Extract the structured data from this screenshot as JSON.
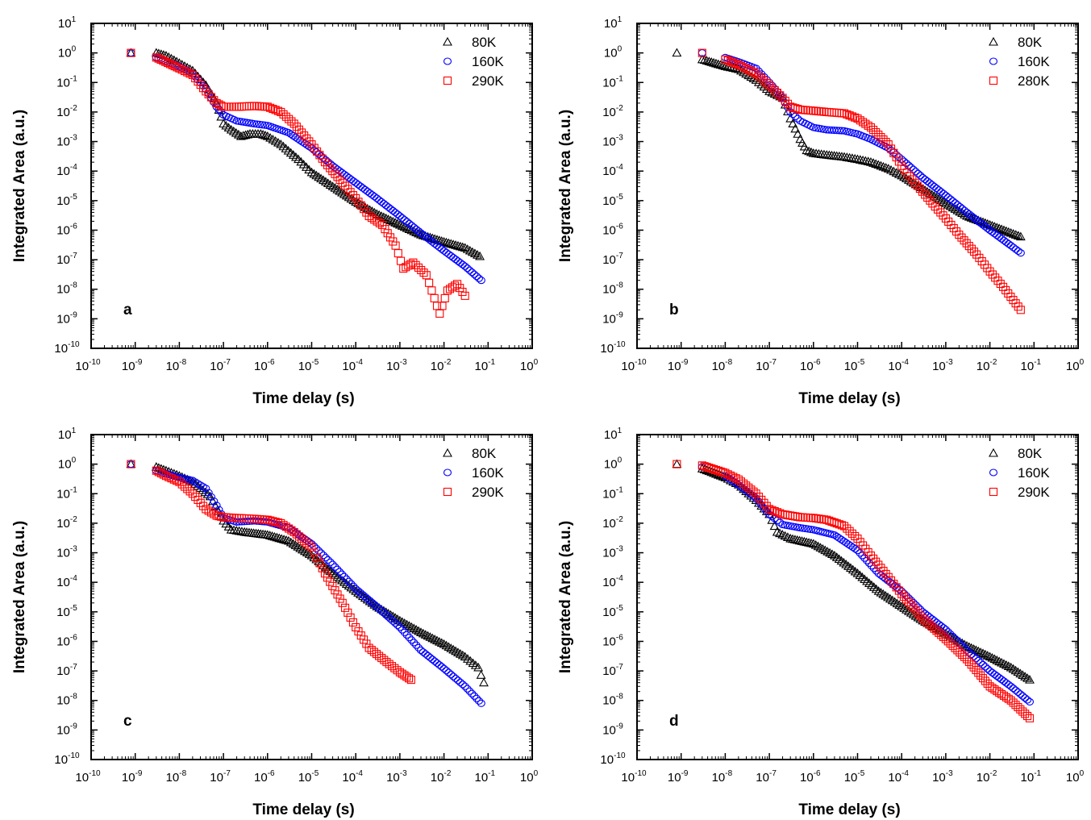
{
  "axis_text": {
    "x_title": "Time delay (s)",
    "y_title": "Integrated Area (a.u.)",
    "x_ticks": [
      {
        "base": "10",
        "exp": "-10"
      },
      {
        "base": "10",
        "exp": "-9"
      },
      {
        "base": "10",
        "exp": "-8"
      },
      {
        "base": "10",
        "exp": "-7"
      },
      {
        "base": "10",
        "exp": "-6"
      },
      {
        "base": "10",
        "exp": "-5"
      },
      {
        "base": "10",
        "exp": "-4"
      },
      {
        "base": "10",
        "exp": "-3"
      },
      {
        "base": "10",
        "exp": "-2"
      },
      {
        "base": "10",
        "exp": "-1"
      },
      {
        "base": "10",
        "exp": "0"
      }
    ],
    "y_ticks": [
      {
        "base": "10",
        "exp": "1"
      },
      {
        "base": "10",
        "exp": "0"
      },
      {
        "base": "10",
        "exp": "-1"
      },
      {
        "base": "10",
        "exp": "-2"
      },
      {
        "base": "10",
        "exp": "-3"
      },
      {
        "base": "10",
        "exp": "-4"
      },
      {
        "base": "10",
        "exp": "-5"
      },
      {
        "base": "10",
        "exp": "-6"
      },
      {
        "base": "10",
        "exp": "-7"
      },
      {
        "base": "10",
        "exp": "-8"
      },
      {
        "base": "10",
        "exp": "-9"
      },
      {
        "base": "10",
        "exp": "-10"
      }
    ]
  },
  "colors": {
    "80K": "#000000",
    "160K": "#0000ff",
    "290K": "#ff0000",
    "280K": "#ff0000"
  },
  "chart_data": [
    {
      "type": "scatter",
      "panel_label": "a",
      "xlabel": "Time delay (s)",
      "ylabel": "Integrated Area (a.u.)",
      "xscale": "log",
      "yscale": "log",
      "xlim": [
        1e-10,
        1
      ],
      "ylim": [
        1e-10,
        10
      ],
      "legend_position": "top-right",
      "series": [
        {
          "name": "80K",
          "marker": "triangle",
          "color": "#000000",
          "x": [
            8e-10,
            3e-09,
            5e-09,
            1e-08,
            2e-08,
            4e-08,
            7e-08,
            1e-07,
            1.5e-07,
            2.5e-07,
            4e-07,
            7e-07,
            1e-06,
            2e-06,
            5e-06,
            1e-05,
            3e-05,
            0.0001,
            0.0003,
            0.001,
            0.003,
            0.01,
            0.03,
            0.065
          ],
          "y": [
            1,
            1,
            0.8,
            0.45,
            0.25,
            0.08,
            0.02,
            0.004,
            0.0025,
            0.0015,
            0.0018,
            0.0018,
            0.0015,
            0.0008,
            0.00025,
            9e-05,
            3e-05,
            9e-06,
            3.5e-06,
            1.5e-06,
            7e-07,
            4e-07,
            2.5e-07,
            1.3e-07
          ]
        },
        {
          "name": "160K",
          "marker": "circle",
          "color": "#0000ff",
          "x": [
            8e-10,
            3e-09,
            1e-08,
            2e-08,
            4e-08,
            7e-08,
            1e-07,
            2e-07,
            5e-07,
            1e-06,
            3e-06,
            1e-05,
            3e-05,
            0.0001,
            0.0003,
            0.001,
            0.003,
            0.01,
            0.03,
            0.07
          ],
          "y": [
            1,
            0.7,
            0.35,
            0.2,
            0.06,
            0.015,
            0.008,
            0.005,
            0.004,
            0.0035,
            0.002,
            0.0006,
            0.00015,
            4e-05,
            1.2e-05,
            3e-06,
            8e-07,
            2e-07,
            6e-08,
            2e-08
          ]
        },
        {
          "name": "290K",
          "marker": "square",
          "color": "#ff0000",
          "x": [
            8e-10,
            3e-09,
            1e-08,
            2e-08,
            4e-08,
            7e-08,
            1e-07,
            2e-07,
            5e-07,
            1e-06,
            2e-06,
            4e-06,
            1e-05,
            2e-05,
            5e-05,
            0.0001,
            0.0002,
            0.0004,
            0.0008,
            0.0012,
            0.002,
            0.004,
            0.008,
            0.012,
            0.02,
            0.03
          ],
          "y": [
            1,
            0.7,
            0.3,
            0.18,
            0.05,
            0.02,
            0.015,
            0.015,
            0.016,
            0.015,
            0.01,
            0.004,
            0.0008,
            0.0002,
            4e-05,
            1.2e-05,
            3e-06,
            1.5e-06,
            3e-07,
            5e-08,
            8e-08,
            3e-08,
            1.5e-09,
            9e-09,
            1.5e-08,
            6e-09
          ]
        }
      ]
    },
    {
      "type": "scatter",
      "panel_label": "b",
      "xlabel": "Time delay (s)",
      "ylabel": "Integrated Area (a.u.)",
      "xscale": "log",
      "yscale": "log",
      "xlim": [
        1e-10,
        1
      ],
      "ylim": [
        1e-10,
        10
      ],
      "legend_position": "top-right",
      "series": [
        {
          "name": "80K",
          "marker": "triangle",
          "color": "#000000",
          "x": [
            8e-10,
            3e-09,
            1e-08,
            2e-08,
            5e-08,
            1e-07,
            2e-07,
            3e-07,
            5e-07,
            7e-07,
            1e-06,
            2e-06,
            5e-06,
            1e-05,
            2e-05,
            5e-05,
            0.0001,
            0.0003,
            0.001,
            0.003,
            0.01,
            0.03,
            0.05
          ],
          "y": [
            1,
            0.6,
            0.35,
            0.28,
            0.12,
            0.05,
            0.03,
            0.006,
            0.0012,
            0.0005,
            0.0004,
            0.00035,
            0.0003,
            0.00025,
            0.0002,
            0.00012,
            7e-05,
            2.5e-05,
            8e-06,
            3e-06,
            1.5e-06,
            8e-07,
            6e-07
          ]
        },
        {
          "name": "160K",
          "marker": "circle",
          "color": "#0000ff",
          "x": [
            3e-09,
            1e-08,
            2e-08,
            5e-08,
            1e-07,
            2e-07,
            3e-07,
            5e-07,
            1e-06,
            2e-06,
            5e-06,
            1e-05,
            2e-05,
            5e-05,
            0.0001,
            0.0003,
            0.001,
            0.003,
            0.01,
            0.03,
            0.05
          ],
          "y": [
            1,
            0.7,
            0.5,
            0.3,
            0.1,
            0.03,
            0.01,
            0.005,
            0.003,
            0.0025,
            0.0023,
            0.0018,
            0.0012,
            0.0006,
            0.00025,
            6e-05,
            1.5e-05,
            4e-06,
            1e-06,
            3e-07,
            1.7e-07
          ]
        },
        {
          "name": "280K",
          "marker": "square",
          "color": "#ff0000",
          "x": [
            3e-09,
            1e-08,
            2e-08,
            5e-08,
            1e-07,
            2e-07,
            3e-07,
            5e-07,
            1e-06,
            2e-06,
            5e-06,
            1e-05,
            2e-05,
            5e-05,
            0.0001,
            0.0002,
            0.0005,
            0.001,
            0.002,
            0.005,
            0.01,
            0.02,
            0.05
          ],
          "y": [
            1,
            0.6,
            0.4,
            0.2,
            0.08,
            0.03,
            0.015,
            0.012,
            0.011,
            0.01,
            0.009,
            0.006,
            0.003,
            0.0008,
            0.00015,
            4e-05,
            8e-06,
            2.5e-06,
            7e-07,
            1.5e-07,
            4e-08,
            1.2e-08,
            2e-09
          ]
        }
      ]
    },
    {
      "type": "scatter",
      "panel_label": "c",
      "xlabel": "Time delay (s)",
      "ylabel": "Integrated Area (a.u.)",
      "xscale": "log",
      "yscale": "log",
      "xlim": [
        1e-10,
        1
      ],
      "ylim": [
        1e-10,
        10
      ],
      "legend_position": "top-right",
      "series": [
        {
          "name": "80K",
          "marker": "triangle",
          "color": "#000000",
          "x": [
            8e-10,
            3e-09,
            5e-09,
            1e-08,
            2e-08,
            5e-08,
            1e-07,
            1.5e-07,
            3e-07,
            1e-06,
            3e-06,
            1e-05,
            3e-05,
            0.0001,
            0.0003,
            0.001,
            0.003,
            0.01,
            0.03,
            0.06,
            0.08
          ],
          "y": [
            1,
            0.8,
            0.6,
            0.4,
            0.25,
            0.08,
            0.012,
            0.006,
            0.005,
            0.004,
            0.0025,
            0.0008,
            0.0002,
            5e-05,
            1.5e-05,
            5e-06,
            2e-06,
            8e-07,
            3e-07,
            1.3e-07,
            4e-08
          ]
        },
        {
          "name": "160K",
          "marker": "circle",
          "color": "#0000ff",
          "x": [
            8e-10,
            3e-09,
            1e-08,
            2e-08,
            4e-08,
            7e-08,
            1e-07,
            2e-07,
            5e-07,
            1e-06,
            3e-06,
            1e-05,
            3e-05,
            0.0001,
            0.0003,
            0.001,
            0.003,
            0.01,
            0.03,
            0.07
          ],
          "y": [
            1,
            0.6,
            0.35,
            0.28,
            0.15,
            0.04,
            0.015,
            0.011,
            0.012,
            0.011,
            0.007,
            0.002,
            0.0004,
            6e-05,
            1.5e-05,
            3e-06,
            5e-07,
            1.2e-07,
            3e-08,
            8e-09
          ]
        },
        {
          "name": "290K",
          "marker": "square",
          "color": "#ff0000",
          "x": [
            8e-10,
            3e-09,
            5e-09,
            1e-08,
            2e-08,
            4e-08,
            7e-08,
            1e-07,
            2e-07,
            5e-07,
            1e-06,
            2e-06,
            4e-06,
            1e-05,
            2e-05,
            5e-05,
            0.0001,
            0.0002,
            0.0005,
            0.001,
            0.0018
          ],
          "y": [
            1,
            0.6,
            0.4,
            0.25,
            0.1,
            0.03,
            0.018,
            0.016,
            0.015,
            0.014,
            0.013,
            0.01,
            0.005,
            0.0015,
            0.0002,
            2e-05,
            3e-06,
            6e-07,
            2e-07,
            9e-08,
            5e-08
          ]
        }
      ]
    },
    {
      "type": "scatter",
      "panel_label": "d",
      "xlabel": "Time delay (s)",
      "ylabel": "Integrated Area (a.u.)",
      "xscale": "log",
      "yscale": "log",
      "xlim": [
        1e-10,
        1
      ],
      "ylim": [
        1e-10,
        10
      ],
      "legend_position": "top-right",
      "series": [
        {
          "name": "80K",
          "marker": "triangle",
          "color": "#000000",
          "x": [
            8e-10,
            3e-09,
            1e-08,
            2e-08,
            5e-08,
            1e-07,
            1.5e-07,
            3e-07,
            1e-06,
            3e-06,
            1e-05,
            3e-05,
            0.0001,
            0.0003,
            0.001,
            0.003,
            0.01,
            0.03,
            0.08
          ],
          "y": [
            1,
            0.7,
            0.35,
            0.2,
            0.06,
            0.02,
            0.005,
            0.003,
            0.002,
            0.0008,
            0.0002,
            5e-05,
            1.5e-05,
            5e-06,
            1.8e-06,
            7e-07,
            3e-07,
            1.3e-07,
            5e-08
          ]
        },
        {
          "name": "160K",
          "marker": "circle",
          "color": "#0000ff",
          "x": [
            3e-09,
            1e-08,
            2e-08,
            5e-08,
            1e-07,
            2e-07,
            5e-07,
            1e-06,
            3e-06,
            1e-05,
            3e-05,
            0.0001,
            0.0003,
            0.001,
            0.003,
            0.01,
            0.03,
            0.08
          ],
          "y": [
            0.8,
            0.4,
            0.2,
            0.07,
            0.02,
            0.009,
            0.007,
            0.006,
            0.004,
            0.0012,
            0.0002,
            5e-05,
            1e-05,
            2.5e-06,
            5e-07,
            1e-07,
            3e-08,
            9e-09
          ]
        },
        {
          "name": "290K",
          "marker": "square",
          "color": "#ff0000",
          "x": [
            8e-10,
            3e-09,
            1e-08,
            2e-08,
            5e-08,
            1e-07,
            2e-07,
            5e-07,
            1e-06,
            2e-06,
            5e-06,
            1e-05,
            2e-05,
            5e-05,
            0.0001,
            0.0003,
            0.001,
            0.003,
            0.01,
            0.03,
            0.08
          ],
          "y": [
            1,
            0.9,
            0.5,
            0.3,
            0.1,
            0.03,
            0.02,
            0.016,
            0.015,
            0.013,
            0.008,
            0.003,
            0.0008,
            0.00015,
            4e-05,
            6e-06,
            1.2e-06,
            2.5e-07,
            3e-08,
            1e-08,
            2.5e-09
          ]
        }
      ]
    }
  ]
}
